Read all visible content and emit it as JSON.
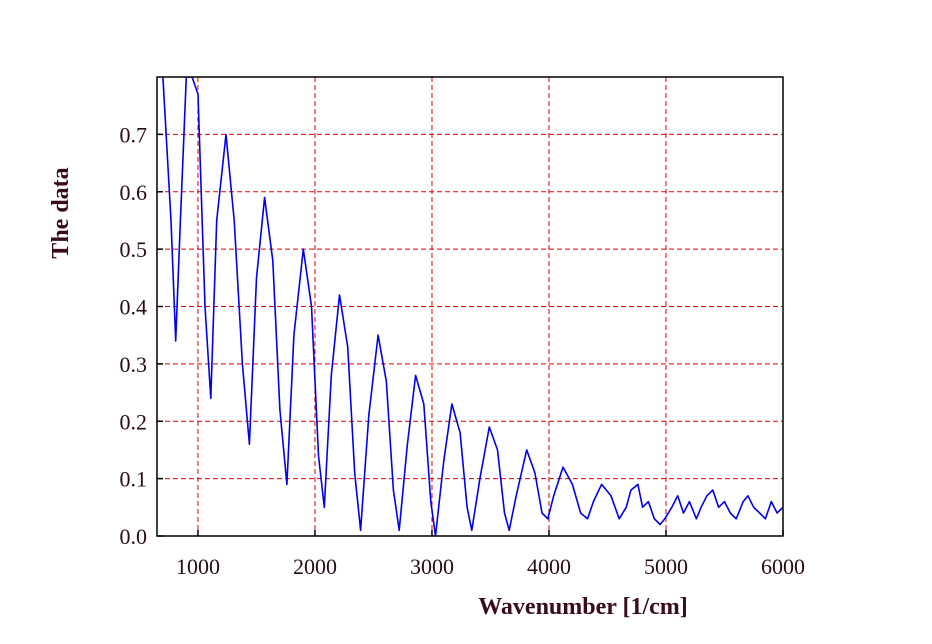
{
  "chart_data": {
    "type": "line",
    "title": "",
    "xlabel": "Wavenumber [1/cm]",
    "ylabel": "The data",
    "xlim": [
      650,
      6000
    ],
    "ylim": [
      0.0,
      0.8
    ],
    "x_ticks": [
      "1000",
      "2000",
      "3000",
      "4000",
      "5000",
      "6000"
    ],
    "y_ticks": [
      "0.0",
      "0.1",
      "0.2",
      "0.3",
      "0.4",
      "0.5",
      "0.6",
      "0.7"
    ],
    "grid": true,
    "grid_color": "#e00000",
    "series": [
      {
        "color": "#0000ee",
        "x": [
          700,
          770,
          810,
          850,
          900,
          950,
          1000,
          1060,
          1110,
          1160,
          1240,
          1310,
          1380,
          1440,
          1500,
          1570,
          1640,
          1700,
          1760,
          1820,
          1900,
          1970,
          2030,
          2080,
          2140,
          2210,
          2280,
          2340,
          2390,
          2460,
          2540,
          2610,
          2670,
          2720,
          2790,
          2860,
          2930,
          2990,
          3030,
          3100,
          3170,
          3240,
          3300,
          3340,
          3410,
          3490,
          3560,
          3620,
          3660,
          3720,
          3810,
          3880,
          3940,
          3990,
          4040,
          4120,
          4200,
          4270,
          4330,
          4380,
          4450,
          4530,
          4600,
          4660,
          4700,
          4760,
          4800,
          4850,
          4900,
          4950,
          4990,
          5050,
          5100,
          5150,
          5200,
          5260,
          5300,
          5350,
          5400,
          5450,
          5500,
          5550,
          5600,
          5660,
          5700,
          5750,
          5800,
          5850,
          5900,
          5950,
          6000
        ],
        "y": [
          0.8,
          0.55,
          0.34,
          0.55,
          0.8,
          0.8,
          0.77,
          0.4,
          0.24,
          0.55,
          0.7,
          0.55,
          0.3,
          0.16,
          0.45,
          0.59,
          0.48,
          0.22,
          0.09,
          0.35,
          0.5,
          0.4,
          0.14,
          0.05,
          0.28,
          0.42,
          0.33,
          0.11,
          0.01,
          0.21,
          0.35,
          0.27,
          0.08,
          0.01,
          0.16,
          0.28,
          0.23,
          0.06,
          0.0,
          0.13,
          0.23,
          0.18,
          0.05,
          0.01,
          0.1,
          0.19,
          0.15,
          0.04,
          0.01,
          0.07,
          0.15,
          0.11,
          0.04,
          0.03,
          0.07,
          0.12,
          0.09,
          0.04,
          0.03,
          0.06,
          0.09,
          0.07,
          0.03,
          0.05,
          0.08,
          0.09,
          0.05,
          0.06,
          0.03,
          0.02,
          0.03,
          0.05,
          0.07,
          0.04,
          0.06,
          0.03,
          0.05,
          0.07,
          0.08,
          0.05,
          0.06,
          0.04,
          0.03,
          0.06,
          0.07,
          0.05,
          0.04,
          0.03,
          0.06,
          0.04,
          0.05
        ]
      }
    ]
  }
}
